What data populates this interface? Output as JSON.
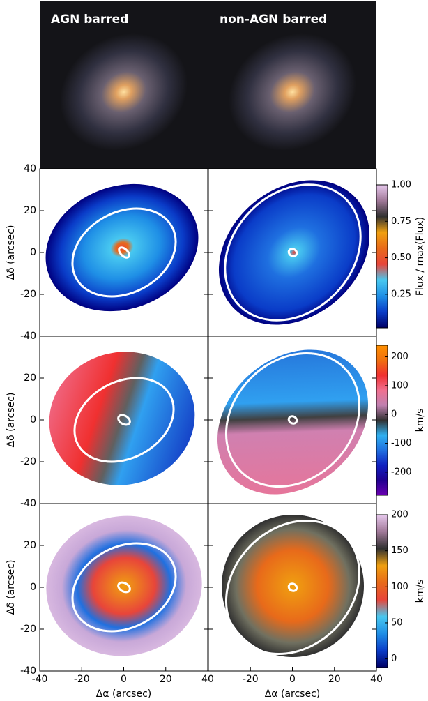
{
  "chart_data": [
    {
      "type": "image",
      "panels": [
        "AGN barred",
        "non-AGN barred"
      ]
    },
    {
      "type": "map",
      "ylabel": "Δδ (arcsec)",
      "ylim": [
        -40,
        40
      ],
      "yticks": [
        40,
        20,
        0,
        -20,
        -40
      ],
      "colorbar": {
        "label": "Flux / max(Flux)",
        "lim": [
          0.02,
          1
        ],
        "ticks": [
          0.25,
          {
            "value": 0.5,
            "label": "0.50"
          },
          0.75,
          {
            "value": 1,
            "label": "1.00"
          }
        ],
        "colors": [
          "#000066",
          "#0a3cc8",
          "#1f8fe6",
          "#48c8f0",
          "#e8453a",
          "#e86a1a",
          "#f0a010",
          "#303030",
          "#a07898",
          "#e6c8ec"
        ]
      }
    },
    {
      "type": "map",
      "ylabel": "Δδ (arcsec)",
      "ylim": [
        -40,
        40
      ],
      "yticks": [
        20,
        0,
        -20,
        -40
      ],
      "colorbar": {
        "label": "km/s",
        "lim": [
          -280,
          240
        ],
        "ticks": [
          -200,
          -100,
          0,
          100,
          200
        ],
        "colors": [
          "#6a00b0",
          "#200090",
          "#1020c0",
          "#2070e0",
          "#30b0f0",
          "#303030",
          "#c080b0",
          "#f07090",
          "#f03030",
          "#f07010",
          "#ff9000"
        ]
      }
    },
    {
      "type": "map",
      "ylabel": "Δδ (arcsec)",
      "ylim": [
        -40,
        40
      ],
      "yticks": [
        20,
        0,
        -20,
        -40
      ],
      "xlabel": "Δα (arcsec)",
      "xlim": [
        -40,
        40
      ],
      "xticks": [
        [
          -40,
          -20,
          0,
          20,
          40
        ],
        [
          -20,
          0,
          20,
          40
        ]
      ],
      "colorbar": {
        "label": "km/s",
        "lim": [
          -12,
          200
        ],
        "ticks": [
          0,
          50,
          100,
          150,
          200
        ],
        "colors": [
          "#000066",
          "#0a3cc8",
          "#1f8fe6",
          "#48c8f0",
          "#e8453a",
          "#e86a1a",
          "#f0a010",
          "#303030",
          "#a07898",
          "#e6c8ec"
        ]
      }
    }
  ]
}
